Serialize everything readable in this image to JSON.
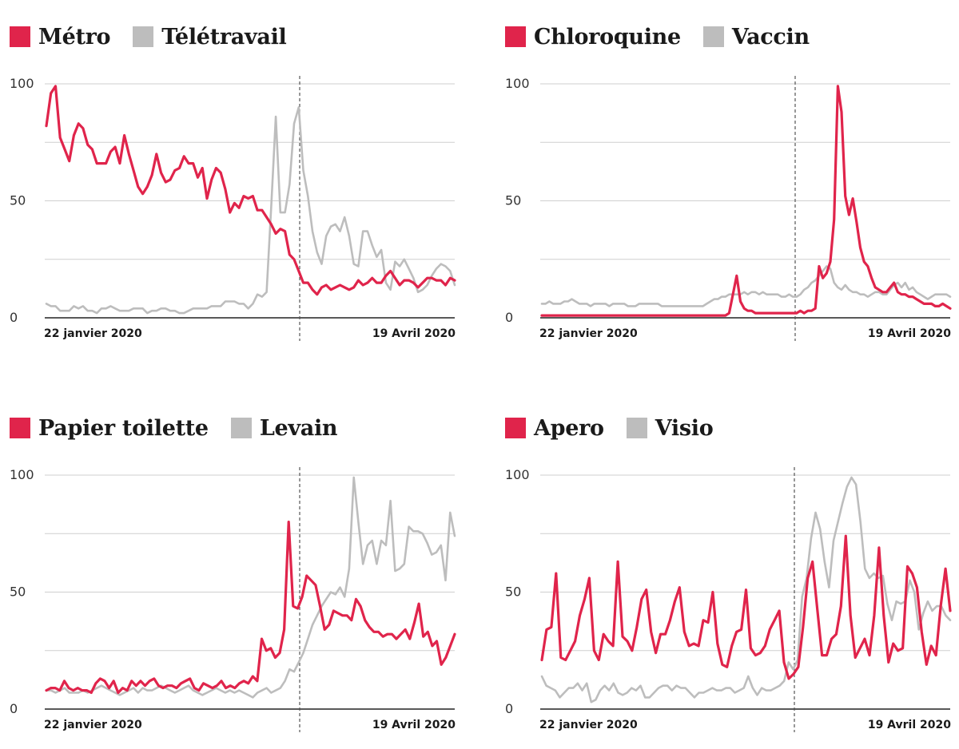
{
  "colors": {
    "primary": "#e0244b",
    "secondary": "#bdbdbd",
    "grid": "#cfcfcf",
    "axis": "#222222",
    "marker": "#555555"
  },
  "chart_data": [
    {
      "type": "line",
      "ylim": [
        0,
        100
      ],
      "yticks": [
        "0",
        "50",
        "100"
      ],
      "x_start_label": "22 janvier 2020",
      "x_end_label": "19 Avril 2020",
      "series": [
        {
          "name": "Métro",
          "color": "#e0244b",
          "values": [
            82,
            96,
            99,
            77,
            72,
            67,
            78,
            83,
            81,
            74,
            72,
            66,
            66,
            66,
            71,
            73,
            66,
            78,
            70,
            63,
            56,
            53,
            56,
            61,
            70,
            62,
            58,
            59,
            63,
            64,
            69,
            66,
            66,
            60,
            64,
            51,
            59,
            64,
            62,
            55,
            45,
            49,
            47,
            52,
            51,
            52,
            46,
            46,
            43,
            40,
            36,
            38,
            37,
            27,
            25,
            20,
            15,
            15,
            12,
            10,
            13,
            14,
            12,
            13,
            14,
            13,
            12,
            13,
            16,
            14,
            15,
            17,
            15,
            15,
            18,
            20,
            17,
            14,
            16,
            16,
            15,
            13,
            15,
            17,
            17,
            16,
            16,
            14,
            17,
            16
          ]
        },
        {
          "name": "Télétravail",
          "color": "#bdbdbd",
          "values": [
            6,
            5,
            5,
            3,
            3,
            3,
            5,
            4,
            5,
            3,
            3,
            2,
            4,
            4,
            5,
            4,
            3,
            3,
            3,
            4,
            4,
            4,
            2,
            3,
            3,
            4,
            4,
            3,
            3,
            2,
            2,
            3,
            4,
            4,
            4,
            4,
            5,
            5,
            5,
            7,
            7,
            7,
            6,
            6,
            4,
            6,
            10,
            9,
            11,
            47,
            86,
            45,
            45,
            57,
            83,
            90,
            63,
            52,
            37,
            28,
            23,
            35,
            39,
            40,
            37,
            43,
            35,
            23,
            22,
            37,
            37,
            31,
            26,
            29,
            15,
            12,
            24,
            22,
            25,
            21,
            17,
            11,
            12,
            14,
            18,
            21,
            23,
            22,
            20,
            14
          ]
        }
      ]
    },
    {
      "type": "line",
      "ylim": [
        0,
        100
      ],
      "yticks": [
        "0",
        "50",
        "100"
      ],
      "x_start_label": "22 janvier 2020",
      "x_end_label": "19 Avril 2020",
      "series": [
        {
          "name": "Chloroquine",
          "color": "#e0244b",
          "values": [
            1,
            1,
            1,
            1,
            1,
            1,
            1,
            1,
            1,
            1,
            1,
            1,
            1,
            1,
            1,
            1,
            1,
            1,
            1,
            1,
            1,
            1,
            1,
            1,
            1,
            1,
            1,
            1,
            1,
            1,
            1,
            1,
            1,
            1,
            1,
            1,
            1,
            1,
            1,
            1,
            1,
            1,
            1,
            1,
            1,
            1,
            1,
            1,
            1,
            1,
            2,
            10,
            18,
            7,
            4,
            3,
            3,
            2,
            2,
            2,
            2,
            2,
            2,
            2,
            2,
            2,
            2,
            2,
            2,
            3,
            2,
            3,
            3,
            4,
            22,
            17,
            19,
            24,
            42,
            99,
            88,
            52,
            44,
            51,
            41,
            30,
            24,
            22,
            17,
            13,
            12,
            11,
            11,
            13,
            15,
            11,
            10,
            10,
            9,
            9,
            8,
            7,
            6,
            6,
            6,
            5,
            5,
            6,
            5,
            4
          ]
        },
        {
          "name": "Vaccin",
          "color": "#bdbdbd",
          "values": [
            6,
            6,
            7,
            6,
            6,
            6,
            7,
            7,
            8,
            7,
            6,
            6,
            6,
            5,
            6,
            6,
            6,
            6,
            5,
            6,
            6,
            6,
            6,
            5,
            5,
            5,
            6,
            6,
            6,
            6,
            6,
            6,
            5,
            5,
            5,
            5,
            5,
            5,
            5,
            5,
            5,
            5,
            5,
            5,
            6,
            7,
            8,
            8,
            9,
            9,
            10,
            10,
            10,
            10,
            11,
            10,
            11,
            11,
            10,
            11,
            10,
            10,
            10,
            10,
            9,
            9,
            10,
            9,
            9,
            10,
            12,
            13,
            15,
            16,
            18,
            20,
            22,
            21,
            15,
            13,
            12,
            14,
            12,
            11,
            11,
            10,
            10,
            9,
            10,
            11,
            11,
            10,
            10,
            12,
            14,
            15,
            13,
            15,
            12,
            13,
            11,
            10,
            9,
            8,
            9,
            10,
            10,
            10,
            10,
            9
          ]
        }
      ]
    },
    {
      "type": "line",
      "ylim": [
        0,
        100
      ],
      "yticks": [
        "0",
        "50",
        "100"
      ],
      "x_start_label": "22 janvier 2020",
      "x_end_label": "19 Avril 2020",
      "series": [
        {
          "name": "Papier toilette",
          "color": "#e0244b",
          "values": [
            8,
            9,
            9,
            8,
            12,
            9,
            8,
            9,
            8,
            8,
            7,
            11,
            13,
            12,
            9,
            12,
            7,
            9,
            8,
            12,
            10,
            12,
            10,
            12,
            13,
            10,
            9,
            10,
            10,
            9,
            11,
            12,
            13,
            9,
            8,
            11,
            10,
            9,
            10,
            12,
            9,
            10,
            9,
            11,
            12,
            11,
            14,
            12,
            30,
            25,
            26,
            22,
            24,
            34,
            80,
            44,
            43,
            48,
            57,
            55,
            53,
            44,
            34,
            36,
            42,
            41,
            40,
            40,
            38,
            47,
            44,
            38,
            35,
            33,
            33,
            31,
            32,
            32,
            30,
            32,
            34,
            30,
            37,
            45,
            31,
            33,
            27,
            29,
            19,
            22,
            27,
            32
          ]
        },
        {
          "name": "Levain",
          "color": "#bdbdbd",
          "values": [
            8,
            8,
            7,
            8,
            9,
            7,
            7,
            7,
            8,
            7,
            8,
            9,
            10,
            9,
            8,
            7,
            6,
            7,
            8,
            9,
            7,
            9,
            8,
            8,
            9,
            10,
            9,
            8,
            7,
            8,
            9,
            10,
            8,
            7,
            6,
            7,
            8,
            9,
            8,
            7,
            8,
            7,
            8,
            7,
            6,
            5,
            7,
            8,
            9,
            7,
            8,
            9,
            12,
            17,
            16,
            20,
            24,
            30,
            36,
            40,
            44,
            47,
            50,
            49,
            52,
            48,
            60,
            99,
            80,
            62,
            70,
            72,
            62,
            72,
            70,
            89,
            59,
            60,
            62,
            78,
            76,
            76,
            75,
            71,
            66,
            67,
            70,
            55,
            84,
            74
          ]
        }
      ]
    },
    {
      "type": "line",
      "ylim": [
        0,
        100
      ],
      "yticks": [
        "0",
        "50",
        "100"
      ],
      "x_start_label": "22 janvier 2020",
      "x_end_label": "19 Avril 2020",
      "series": [
        {
          "name": "Apero",
          "color": "#e0244b",
          "values": [
            21,
            34,
            35,
            58,
            22,
            21,
            25,
            29,
            40,
            47,
            56,
            25,
            21,
            32,
            29,
            27,
            63,
            31,
            29,
            25,
            35,
            47,
            51,
            33,
            24,
            32,
            32,
            38,
            46,
            52,
            33,
            27,
            28,
            27,
            38,
            37,
            50,
            28,
            19,
            18,
            27,
            33,
            34,
            51,
            26,
            23,
            24,
            27,
            34,
            38,
            42,
            20,
            13,
            15,
            18,
            35,
            56,
            63,
            43,
            23,
            23,
            30,
            32,
            44,
            74,
            40,
            22,
            26,
            30,
            23,
            40,
            69,
            40,
            20,
            28,
            25,
            26,
            61,
            58,
            52,
            33,
            19,
            27,
            23,
            44,
            60,
            42
          ]
        },
        {
          "name": "Visio",
          "color": "#bdbdbd",
          "values": [
            14,
            10,
            9,
            8,
            5,
            7,
            9,
            9,
            11,
            8,
            11,
            3,
            4,
            8,
            10,
            8,
            11,
            7,
            6,
            7,
            9,
            8,
            10,
            5,
            5,
            7,
            9,
            10,
            10,
            8,
            10,
            9,
            9,
            7,
            5,
            7,
            7,
            8,
            9,
            8,
            8,
            9,
            9,
            7,
            8,
            9,
            14,
            9,
            6,
            9,
            8,
            8,
            9,
            10,
            12,
            20,
            17,
            21,
            48,
            56,
            73,
            84,
            77,
            63,
            52,
            72,
            80,
            88,
            95,
            99,
            96,
            80,
            60,
            56,
            58,
            56,
            57,
            45,
            38,
            46,
            45,
            46,
            55,
            50,
            34,
            41,
            46,
            42,
            44,
            44,
            40,
            38
          ]
        }
      ]
    }
  ]
}
